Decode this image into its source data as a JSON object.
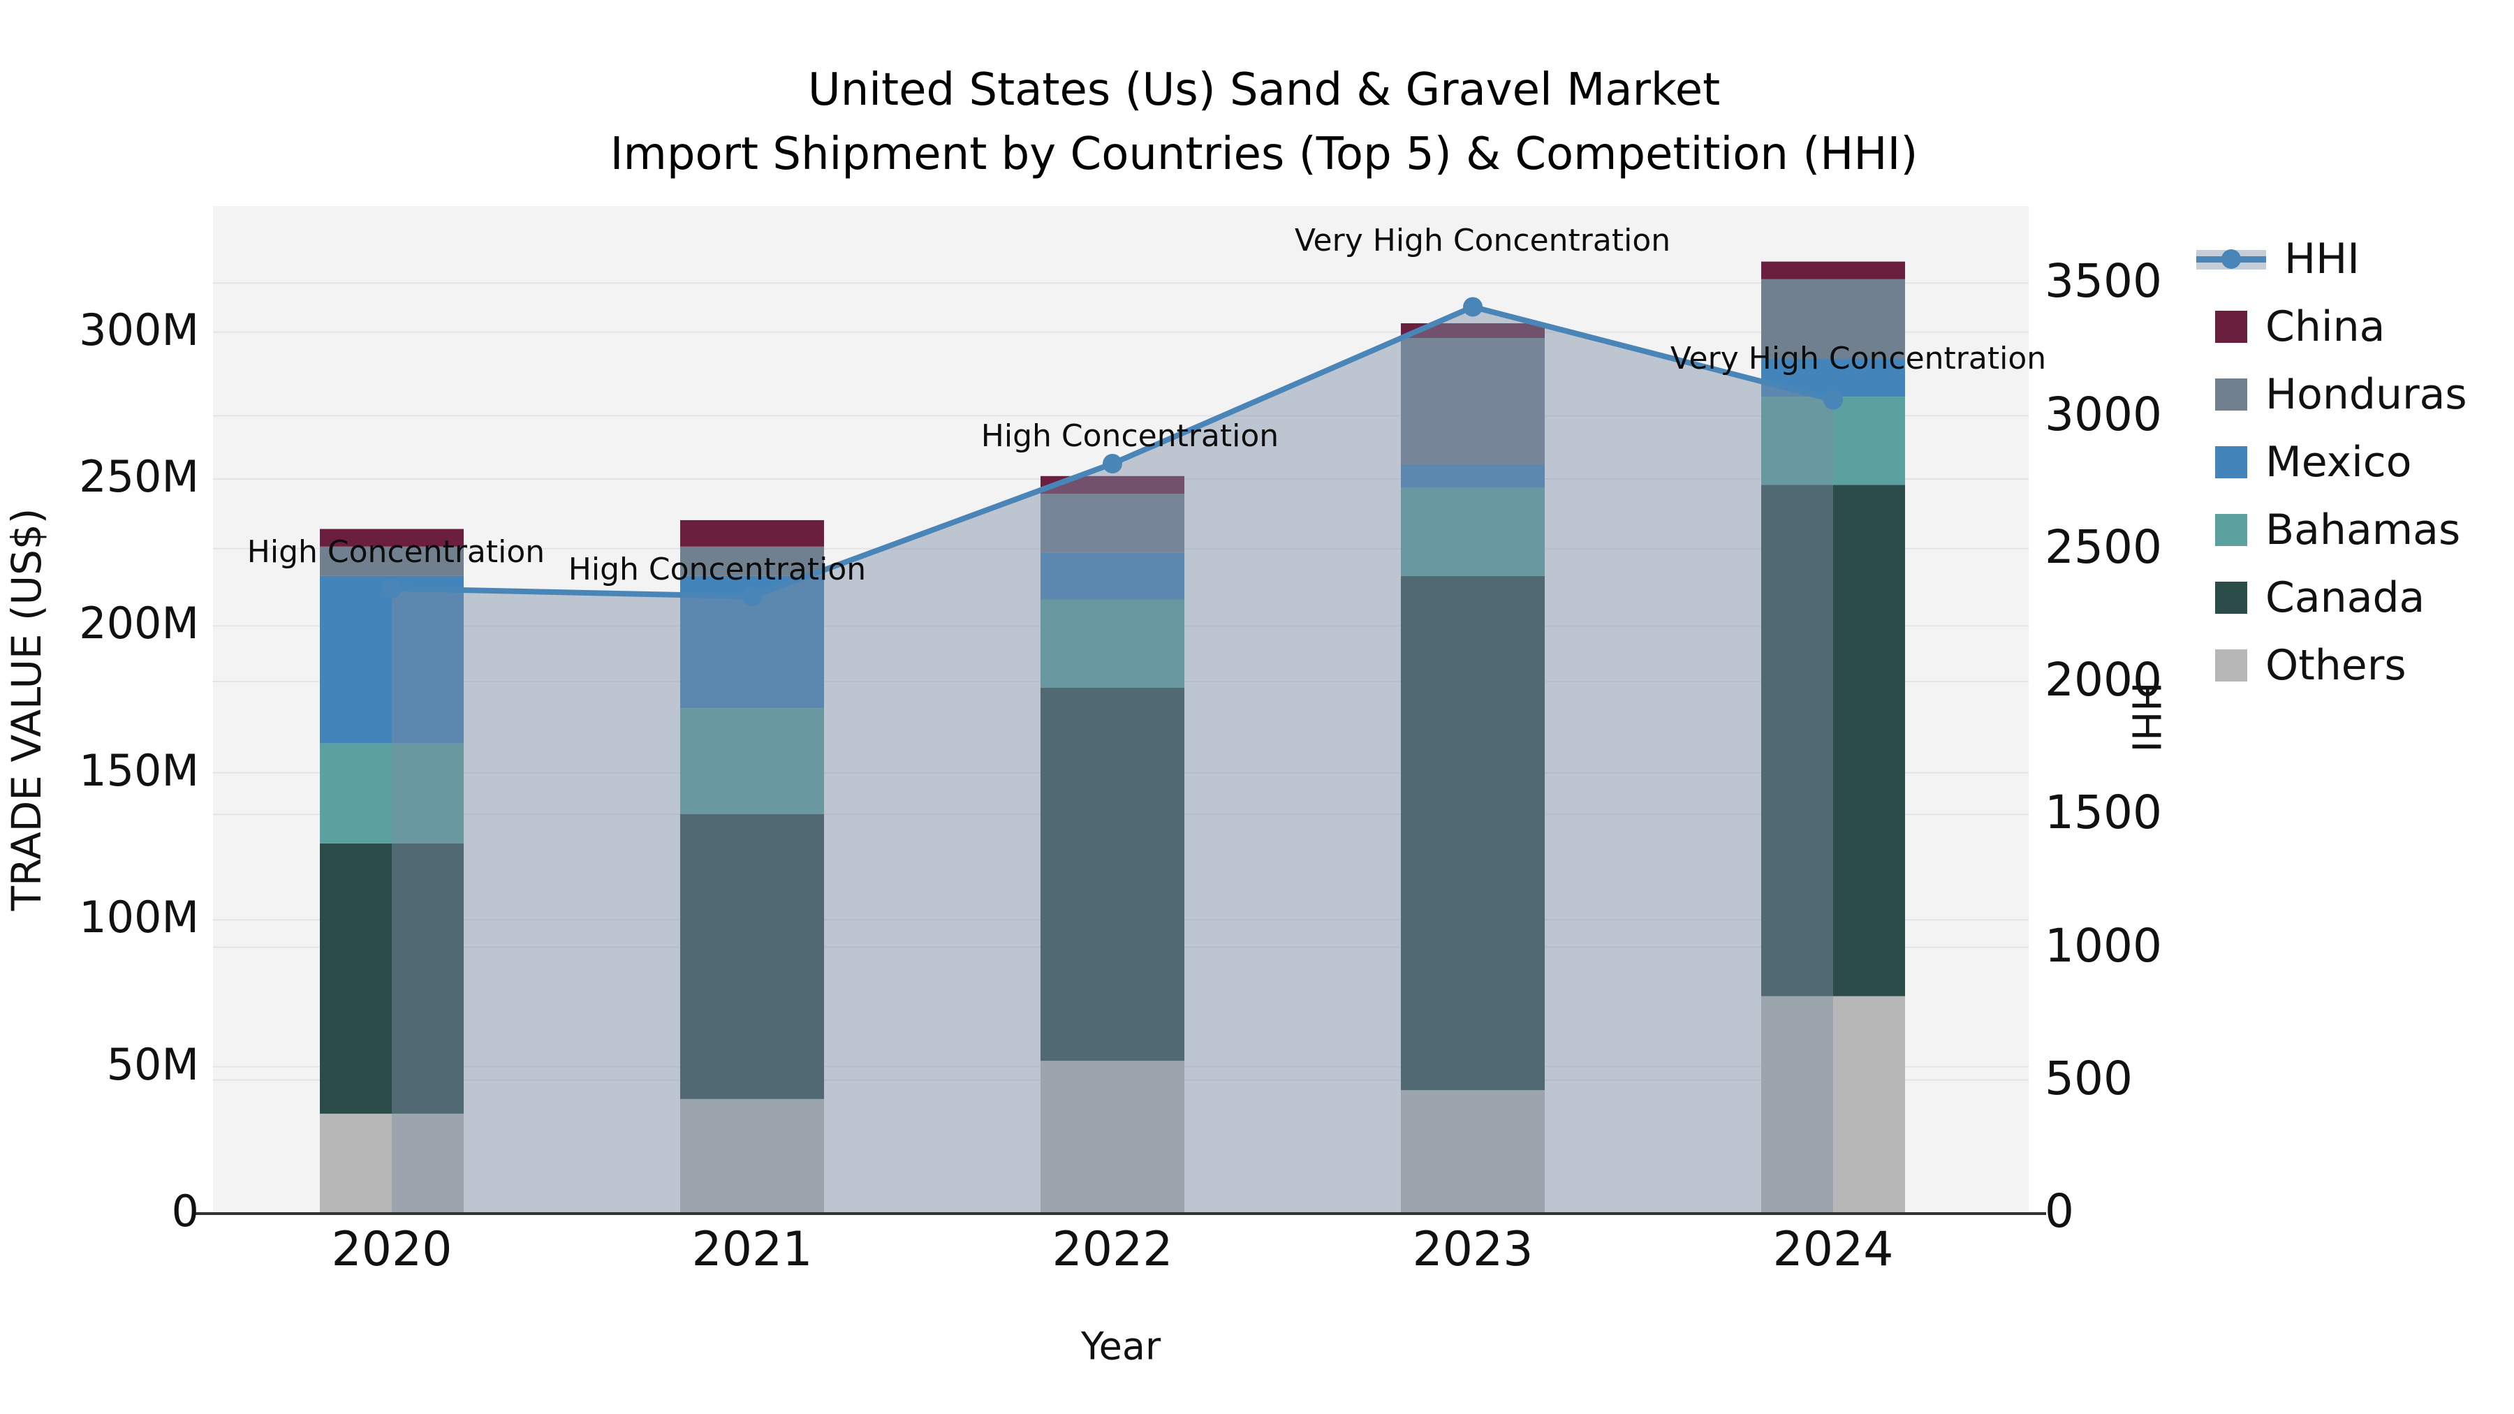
{
  "title": {
    "line1": "United States (Us) Sand & Gravel Market",
    "line2": "Import Shipment by Countries (Top 5) & Competition (HHI)"
  },
  "axes": {
    "x": {
      "label": "Year",
      "ticks": [
        "2020",
        "2021",
        "2022",
        "2023",
        "2024"
      ]
    },
    "y_left": {
      "label": "TRADE VALUE (US$)",
      "ticks": [
        "0",
        "50M",
        "100M",
        "150M",
        "200M",
        "250M",
        "300M"
      ],
      "tick_values": [
        0,
        50,
        100,
        150,
        200,
        250,
        300
      ],
      "unit": "million US$"
    },
    "y_right": {
      "label": "HHI",
      "ticks": [
        "0",
        "500",
        "1000",
        "1500",
        "2000",
        "2500",
        "3000",
        "3500"
      ],
      "tick_values": [
        0,
        500,
        1000,
        1500,
        2000,
        2500,
        3000,
        3500
      ]
    }
  },
  "chart_data": {
    "type": "stacked-bar+line",
    "title": "United States (Us) Sand & Gravel Market Import Shipment by Countries (Top 5) & Competition (HHI)",
    "xlabel": "Year",
    "ylabel_left": "TRADE VALUE (US$)",
    "ylabel_right": "HHI",
    "categories": [
      2020,
      2021,
      2022,
      2023,
      2024
    ],
    "values_unit": "million US$ (estimated from axis)",
    "series": [
      {
        "name": "China",
        "color": "#6b1f3f",
        "values": [
          6,
          9,
          6,
          5,
          6
        ]
      },
      {
        "name": "Honduras",
        "color": "#71808f",
        "values": [
          10,
          10,
          20,
          43,
          27
        ]
      },
      {
        "name": "Mexico",
        "color": "#4384bb",
        "values": [
          57,
          45,
          16,
          8,
          13
        ]
      },
      {
        "name": "Bahamas",
        "color": "#5ba19f",
        "values": [
          34,
          36,
          30,
          30,
          30
        ]
      },
      {
        "name": "Canada",
        "color": "#2c4c4a",
        "values": [
          92,
          97,
          127,
          175,
          174
        ]
      },
      {
        "name": "Others",
        "color": "#b6b7b6",
        "values": [
          34,
          39,
          52,
          42,
          74
        ]
      }
    ],
    "stack_totals": [
      233,
      236,
      251,
      303,
      324
    ],
    "line_series": {
      "name": "HHI",
      "color": "#4a85b8",
      "axis": "right",
      "values": [
        2350,
        2320,
        2820,
        3410,
        3060
      ],
      "has_area_fill": true,
      "has_markers": true
    },
    "annotations": [
      {
        "year": 2020,
        "text": "High Concentration"
      },
      {
        "year": 2021,
        "text": "High Concentration"
      },
      {
        "year": 2022,
        "text": "High Concentration"
      },
      {
        "year": 2023,
        "text": "Very High Concentration"
      },
      {
        "year": 2024,
        "text": "Very High Concentration"
      }
    ],
    "ylim_left": [
      0,
      330
    ],
    "ylim_right": [
      0,
      3650
    ],
    "grid": true,
    "legend_position": "right",
    "legend_order": [
      "HHI",
      "China",
      "Honduras",
      "Mexico",
      "Bahamas",
      "Canada",
      "Others"
    ]
  },
  "colors": {
    "fill_under_line": "rgba(125,143,165,0.45)",
    "plot_bg": "#f3f3f4",
    "grid": "#e4e4e7",
    "axis_line": "#333333",
    "text": "#111111"
  }
}
